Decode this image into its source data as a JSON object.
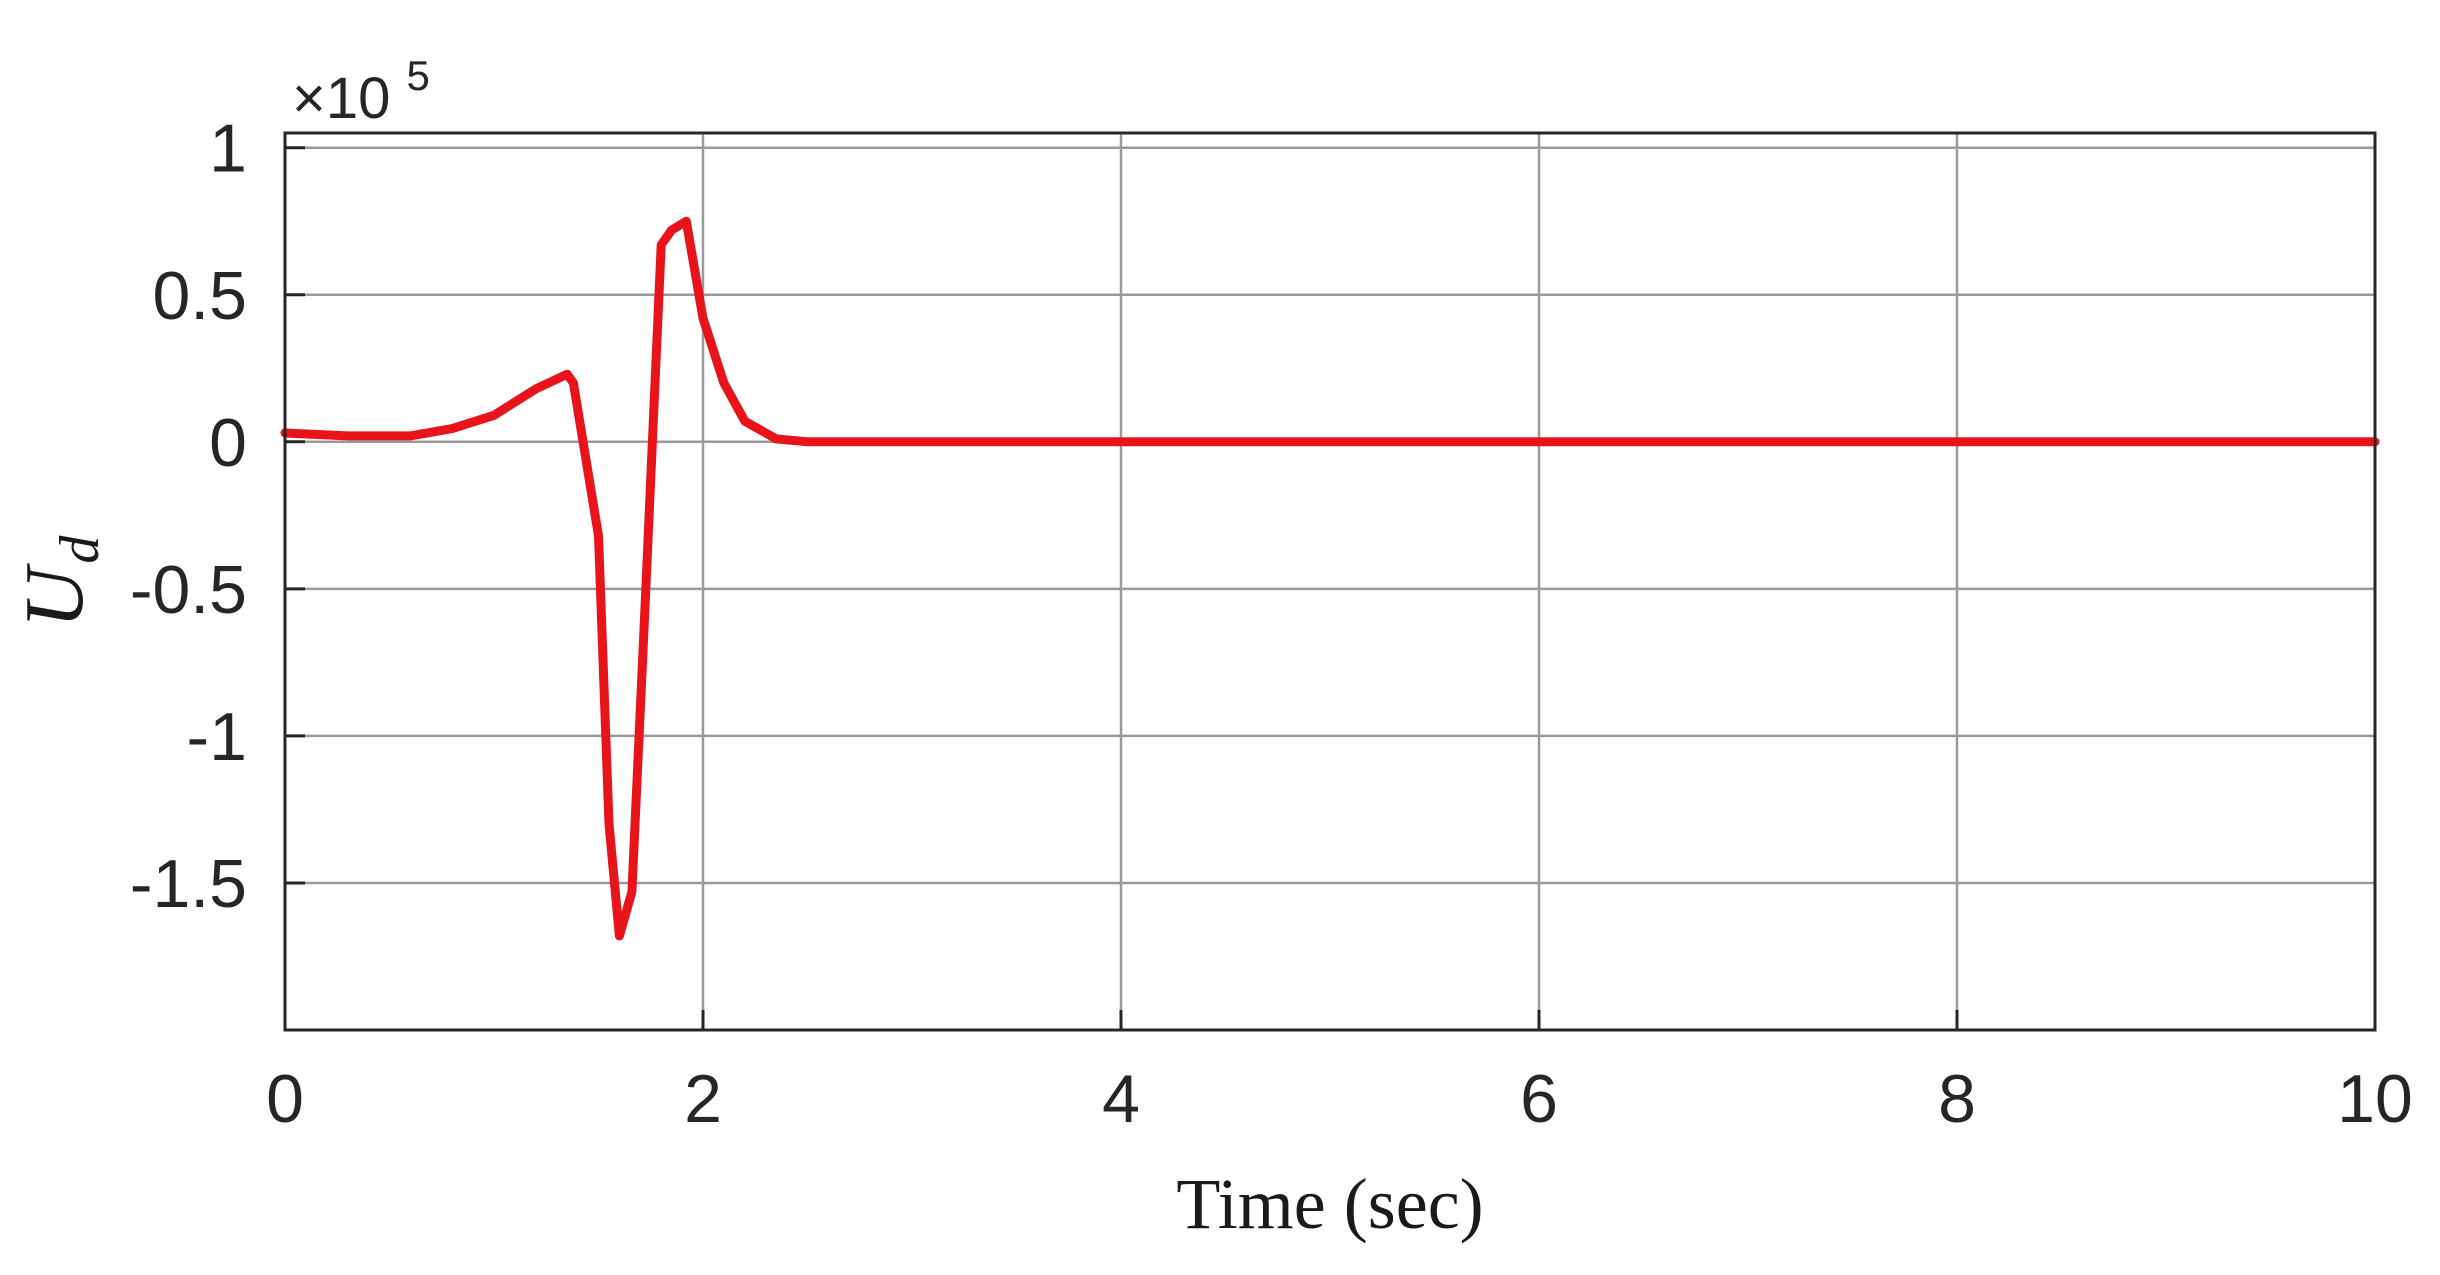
{
  "chart_data": {
    "type": "line",
    "title": "",
    "xlabel": "Time (sec)",
    "ylabel": {
      "main": "U",
      "subscript": "d"
    },
    "y_multiplier": {
      "base": "×10",
      "exponent": "5"
    },
    "xlim": [
      0,
      10
    ],
    "ylim": [
      -2,
      1.05
    ],
    "x_ticks": [
      0,
      2,
      4,
      6,
      8,
      10
    ],
    "x_tick_labels": [
      "0",
      "2",
      "4",
      "6",
      "8",
      "10"
    ],
    "y_ticks": [
      1,
      0.5,
      0,
      -0.5,
      -1,
      -1.5
    ],
    "y_tick_labels": [
      "1",
      "0.5",
      "0",
      "-0.5",
      "-1",
      "-1.5"
    ],
    "grid": true,
    "series": [
      {
        "color": "#e8141b",
        "x": [
          0,
          0.3,
          0.6,
          0.8,
          1.0,
          1.2,
          1.35,
          1.38,
          1.5,
          1.55,
          1.6,
          1.66,
          1.72,
          1.8,
          1.85,
          1.92,
          2.0,
          2.1,
          2.2,
          2.35,
          2.5,
          3.0,
          4.0,
          5.0,
          6.0,
          7.0,
          8.0,
          9.0,
          10.0
        ],
        "y": [
          0.03,
          0.02,
          0.02,
          0.045,
          0.09,
          0.18,
          0.23,
          0.2,
          -0.32,
          -1.3,
          -1.68,
          -1.53,
          -0.6,
          0.67,
          0.72,
          0.75,
          0.42,
          0.2,
          0.07,
          0.01,
          0.0,
          0.0,
          0.0,
          0.0,
          0.0,
          0.0,
          0.0,
          0.0,
          0.0
        ]
      }
    ]
  }
}
